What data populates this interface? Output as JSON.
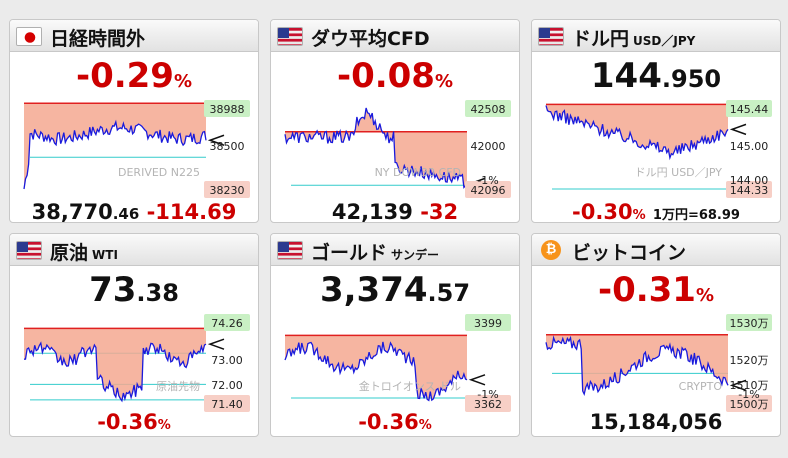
{
  "cards": [
    {
      "title": "日経時間外",
      "subtitle": "",
      "flag": "japan-flag-icon",
      "headline": {
        "main": "-0.29",
        "small": "%",
        "color": "red"
      },
      "bottom": {
        "main": "38,770",
        "dec": ".46",
        "change": "-114.69"
      },
      "chart": {
        "high_label": "38988",
        "low_label": "38230",
        "mid_label": "38500",
        "watermark": "DERIVED N225",
        "ymax": 38988,
        "ymin": 38230,
        "ref": 38960,
        "cyan": [
          38500
        ]
      }
    },
    {
      "title": "ダウ平均CFD",
      "subtitle": "",
      "flag": "us-flag-icon",
      "headline": {
        "main": "-0.08",
        "small": "%",
        "color": "red"
      },
      "bottom": {
        "main": "42,139",
        "dec": "",
        "change": "-32"
      },
      "chart": {
        "high_label": "42508",
        "low_label": "42096",
        "mid_label": "42000",
        "watermark": "NY DOW30 CFD",
        "extra_label": "-1%",
        "ymax": 42508,
        "ymin": 41560,
        "ref": 42170,
        "cyan": [
          41600
        ]
      }
    },
    {
      "title": "ドル円",
      "subtitle": "USD／JPY",
      "flag": "us-flag-icon",
      "headline": {
        "main": "144",
        "small": ".950",
        "color": "black"
      },
      "bottom": {
        "change": "-0.30",
        "change_small": "%",
        "note": "1万円=68.99"
      },
      "chart": {
        "high_label": "145.44",
        "low_label": "144.33",
        "mid_label": "145.00",
        "watermark": "ドル円 USD／JPY",
        "extra_label": "144.00",
        "ymax": 145.44,
        "ymin": 144.0,
        "ref": 145.37,
        "cyan": [
          144.0
        ]
      }
    },
    {
      "title": "原油",
      "subtitle": "WTI",
      "flag": "us-flag-icon",
      "headline": {
        "main": "73",
        "small": ".38",
        "color": "black"
      },
      "bottom": {
        "change": "-0.36",
        "change_small": "%"
      },
      "chart": {
        "high_label": "74.26",
        "low_label": "71.40",
        "mid_label": "73.00",
        "mid2_label": "72.00",
        "watermark": "原油先物",
        "ymax": 74.26,
        "ymin": 71.4,
        "ref": 73.8,
        "cyan": [
          73.0,
          72.0,
          71.5
        ]
      }
    },
    {
      "title": "ゴールド",
      "subtitle": "サンデー",
      "flag": "us-flag-icon",
      "headline": {
        "main": "3,374",
        "small": ".57",
        "color": "black"
      },
      "bottom": {
        "change": "-0.36",
        "change_small": "%"
      },
      "chart": {
        "high_label": "3399",
        "low_label": "3362",
        "watermark": "金トロイオンス ドル",
        "extra_label": "-1%",
        "ymax": 3399,
        "ymin": 3345,
        "ref": 3386,
        "cyan": [
          3348
        ]
      }
    },
    {
      "title": "ビットコイン",
      "subtitle": "",
      "flag": "bitcoin-icon",
      "headline": {
        "main": "-0.31",
        "small": "%",
        "color": "red"
      },
      "bottom": {
        "main": "15,184,056",
        "dec": ""
      },
      "chart": {
        "high_label": "1530万",
        "low_label": "1500万",
        "mid_label": "1520万",
        "mid2_label": "1510万",
        "watermark": "CRYPTO",
        "extra_label": "-1%",
        "ymax": 15300000,
        "ymin": 15000000,
        "ref": 15230000,
        "cyan": [
          15100000
        ]
      }
    }
  ]
}
